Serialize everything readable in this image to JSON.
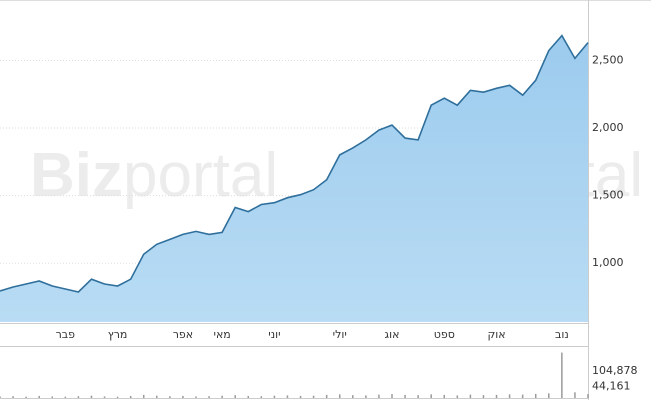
{
  "chart_data": [
    {
      "type": "area",
      "watermark_bold": "Biz",
      "watermark_light": "portal",
      "categories": [
        null,
        null,
        null,
        null,
        null,
        "פבר",
        null,
        null,
        null,
        "מרץ",
        null,
        null,
        null,
        null,
        "אפר",
        null,
        null,
        "מאי",
        null,
        null,
        null,
        "יוני",
        null,
        null,
        null,
        null,
        "יולי",
        null,
        null,
        null,
        "אוג",
        null,
        null,
        null,
        "ספט",
        null,
        null,
        null,
        "אוק",
        null,
        null,
        null,
        null,
        "נוב",
        null,
        null
      ],
      "series": [
        {
          "name": "price",
          "color": "#2f6f9c",
          "values": [
            794,
            824,
            846,
            868,
            831,
            809,
            787,
            882,
            846,
            831,
            882,
            1066,
            1140,
            1176,
            1213,
            1235,
            1213,
            1228,
            1412,
            1382,
            1434,
            1448,
            1485,
            1507,
            1544,
            1618,
            1801,
            1853,
            1912,
            1985,
            2022,
            1926,
            1912,
            2169,
            2221,
            2169,
            2279,
            2265,
            2294,
            2316,
            2243,
            2353,
            2574,
            2684,
            2515,
            2632
          ]
        }
      ],
      "ylim": [
        565,
        2940
      ],
      "yticks": [
        {
          "value": 1000,
          "label": "1,000"
        },
        {
          "value": 1500,
          "label": "1,500"
        },
        {
          "value": 2000,
          "label": "2,000"
        },
        {
          "value": 2500,
          "label": "2,500"
        }
      ],
      "grid": true
    },
    {
      "type": "bar",
      "series": [
        {
          "name": "volume",
          "color": "#9a9a9a",
          "values": [
            6000,
            7000,
            5000,
            8000,
            6000,
            5000,
            7000,
            9000,
            6000,
            5000,
            8000,
            12000,
            9000,
            7000,
            8000,
            6000,
            7000,
            9000,
            11000,
            8000,
            7000,
            9000,
            10000,
            8000,
            9000,
            12000,
            14000,
            11000,
            10000,
            13000,
            15000,
            12000,
            11000,
            14000,
            12000,
            10000,
            13000,
            11000,
            12000,
            14000,
            13000,
            16000,
            18000,
            175000,
            22000,
            15000
          ]
        }
      ],
      "ylim": [
        0,
        185000
      ],
      "yticks": [
        {
          "value": 44161,
          "label": "44,161"
        },
        {
          "value": 104878,
          "label": "104,878"
        }
      ]
    }
  ]
}
